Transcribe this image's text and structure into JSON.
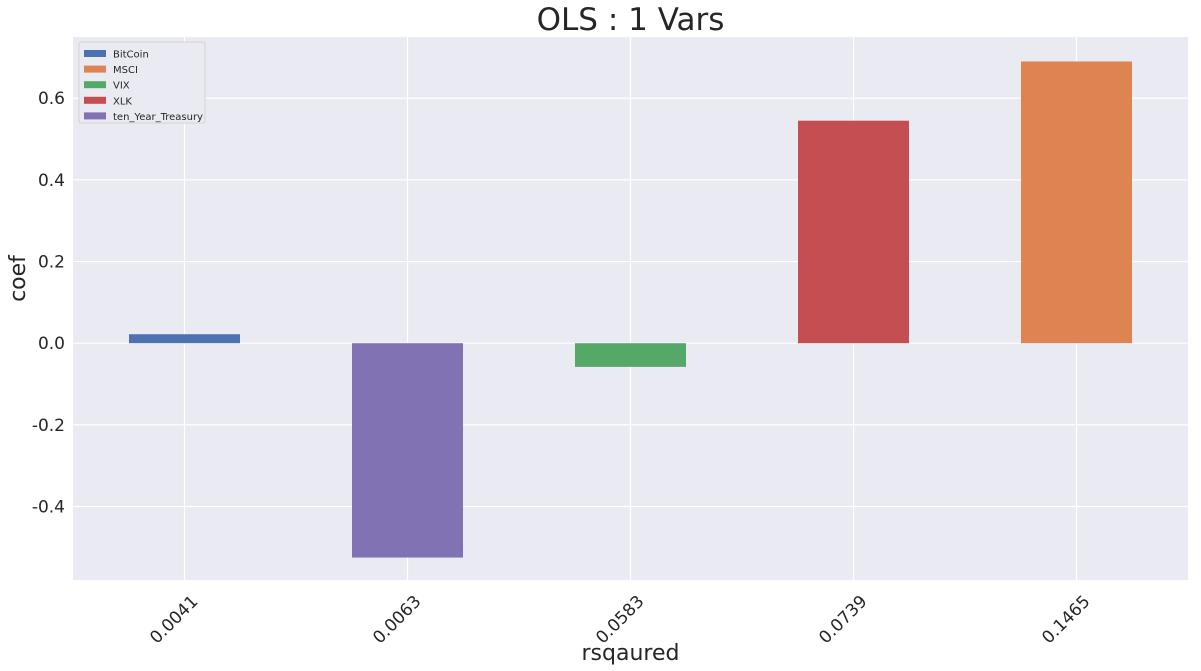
{
  "chart_data": {
    "type": "bar",
    "title": "OLS : 1 Vars",
    "xlabel": "rsqaured",
    "ylabel": "coef",
    "categories": [
      "0.0041",
      "0.0063",
      "0.0583",
      "0.0739",
      "0.1465"
    ],
    "series": [
      {
        "name": "BitCoin",
        "color": "#4c72b0",
        "category": "0.0041",
        "value": 0.022
      },
      {
        "name": "MSCI",
        "color": "#dd8452",
        "category": "0.1465",
        "value": 0.69
      },
      {
        "name": "VIX",
        "color": "#55a868",
        "category": "0.0583",
        "value": -0.058
      },
      {
        "name": "XLK",
        "color": "#c44e52",
        "category": "0.0739",
        "value": 0.545
      },
      {
        "name": "ten_Year_Treasury",
        "color": "#8172b3",
        "category": "0.0063",
        "value": -0.525
      }
    ],
    "ylim": [
      -0.58,
      0.75
    ],
    "yticks": [
      -0.4,
      -0.2,
      0.0,
      0.2,
      0.4,
      0.6
    ],
    "ytick_labels": [
      "-0.4",
      "-0.2",
      "0.0",
      "0.2",
      "0.4",
      "0.6"
    ],
    "grid": true,
    "legend_position": "top-left",
    "background_color": "#eaeaf2"
  }
}
